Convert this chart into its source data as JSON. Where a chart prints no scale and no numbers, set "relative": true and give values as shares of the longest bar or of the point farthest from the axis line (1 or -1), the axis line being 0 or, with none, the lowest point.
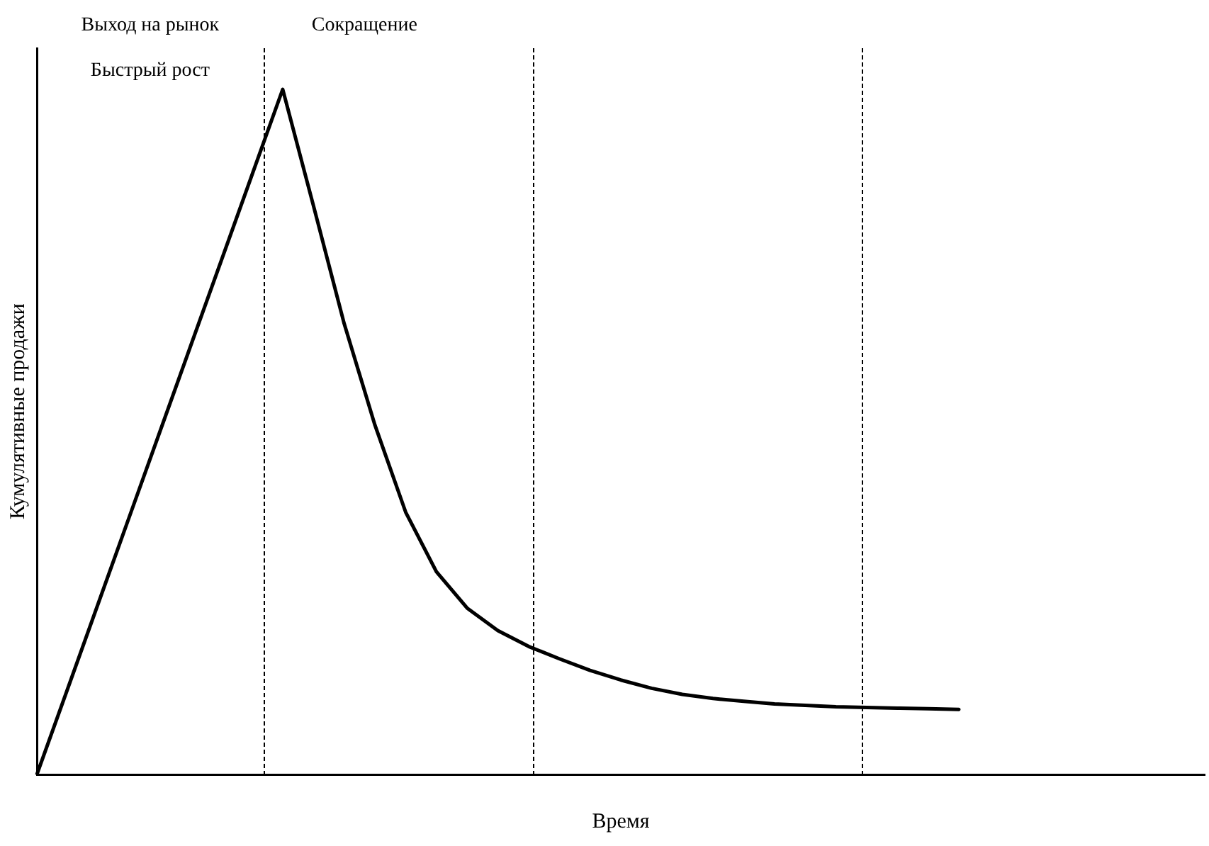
{
  "chart_data": {
    "type": "line",
    "relative": true,
    "xlabel": "Время",
    "ylabel": "Кумулятивные продажи",
    "categories": [
      null,
      null,
      null,
      null,
      null,
      null,
      null,
      null,
      null,
      null,
      null,
      null,
      null,
      null,
      null,
      null,
      null,
      null,
      null,
      null,
      null,
      null,
      null,
      null,
      null,
      null,
      null,
      null,
      null,
      null,
      null,
      null,
      null,
      null,
      null,
      null,
      null,
      null,
      null
    ],
    "grid": false,
    "legend": false,
    "marker": "none",
    "line_style": "solid",
    "series": [
      {
        "color": "#000000",
        "values": [
          0,
          0.125,
          0.25,
          0.375,
          0.5,
          0.625,
          0.75,
          0.875,
          1,
          0.83,
          0.658,
          0.51,
          0.383,
          0.296,
          0.243,
          0.21,
          0.187,
          0.169,
          0.152,
          0.138,
          0.126,
          0.117,
          0.111,
          0.107,
          0.103,
          0.101,
          0.099,
          0.098,
          0.097,
          0.096,
          0.095,
          null,
          null,
          null,
          null,
          null,
          null,
          null,
          null
        ]
      }
    ],
    "annotations": [
      "Выход на рынок",
      "Быстрый рост",
      "Сокращение"
    ]
  }
}
